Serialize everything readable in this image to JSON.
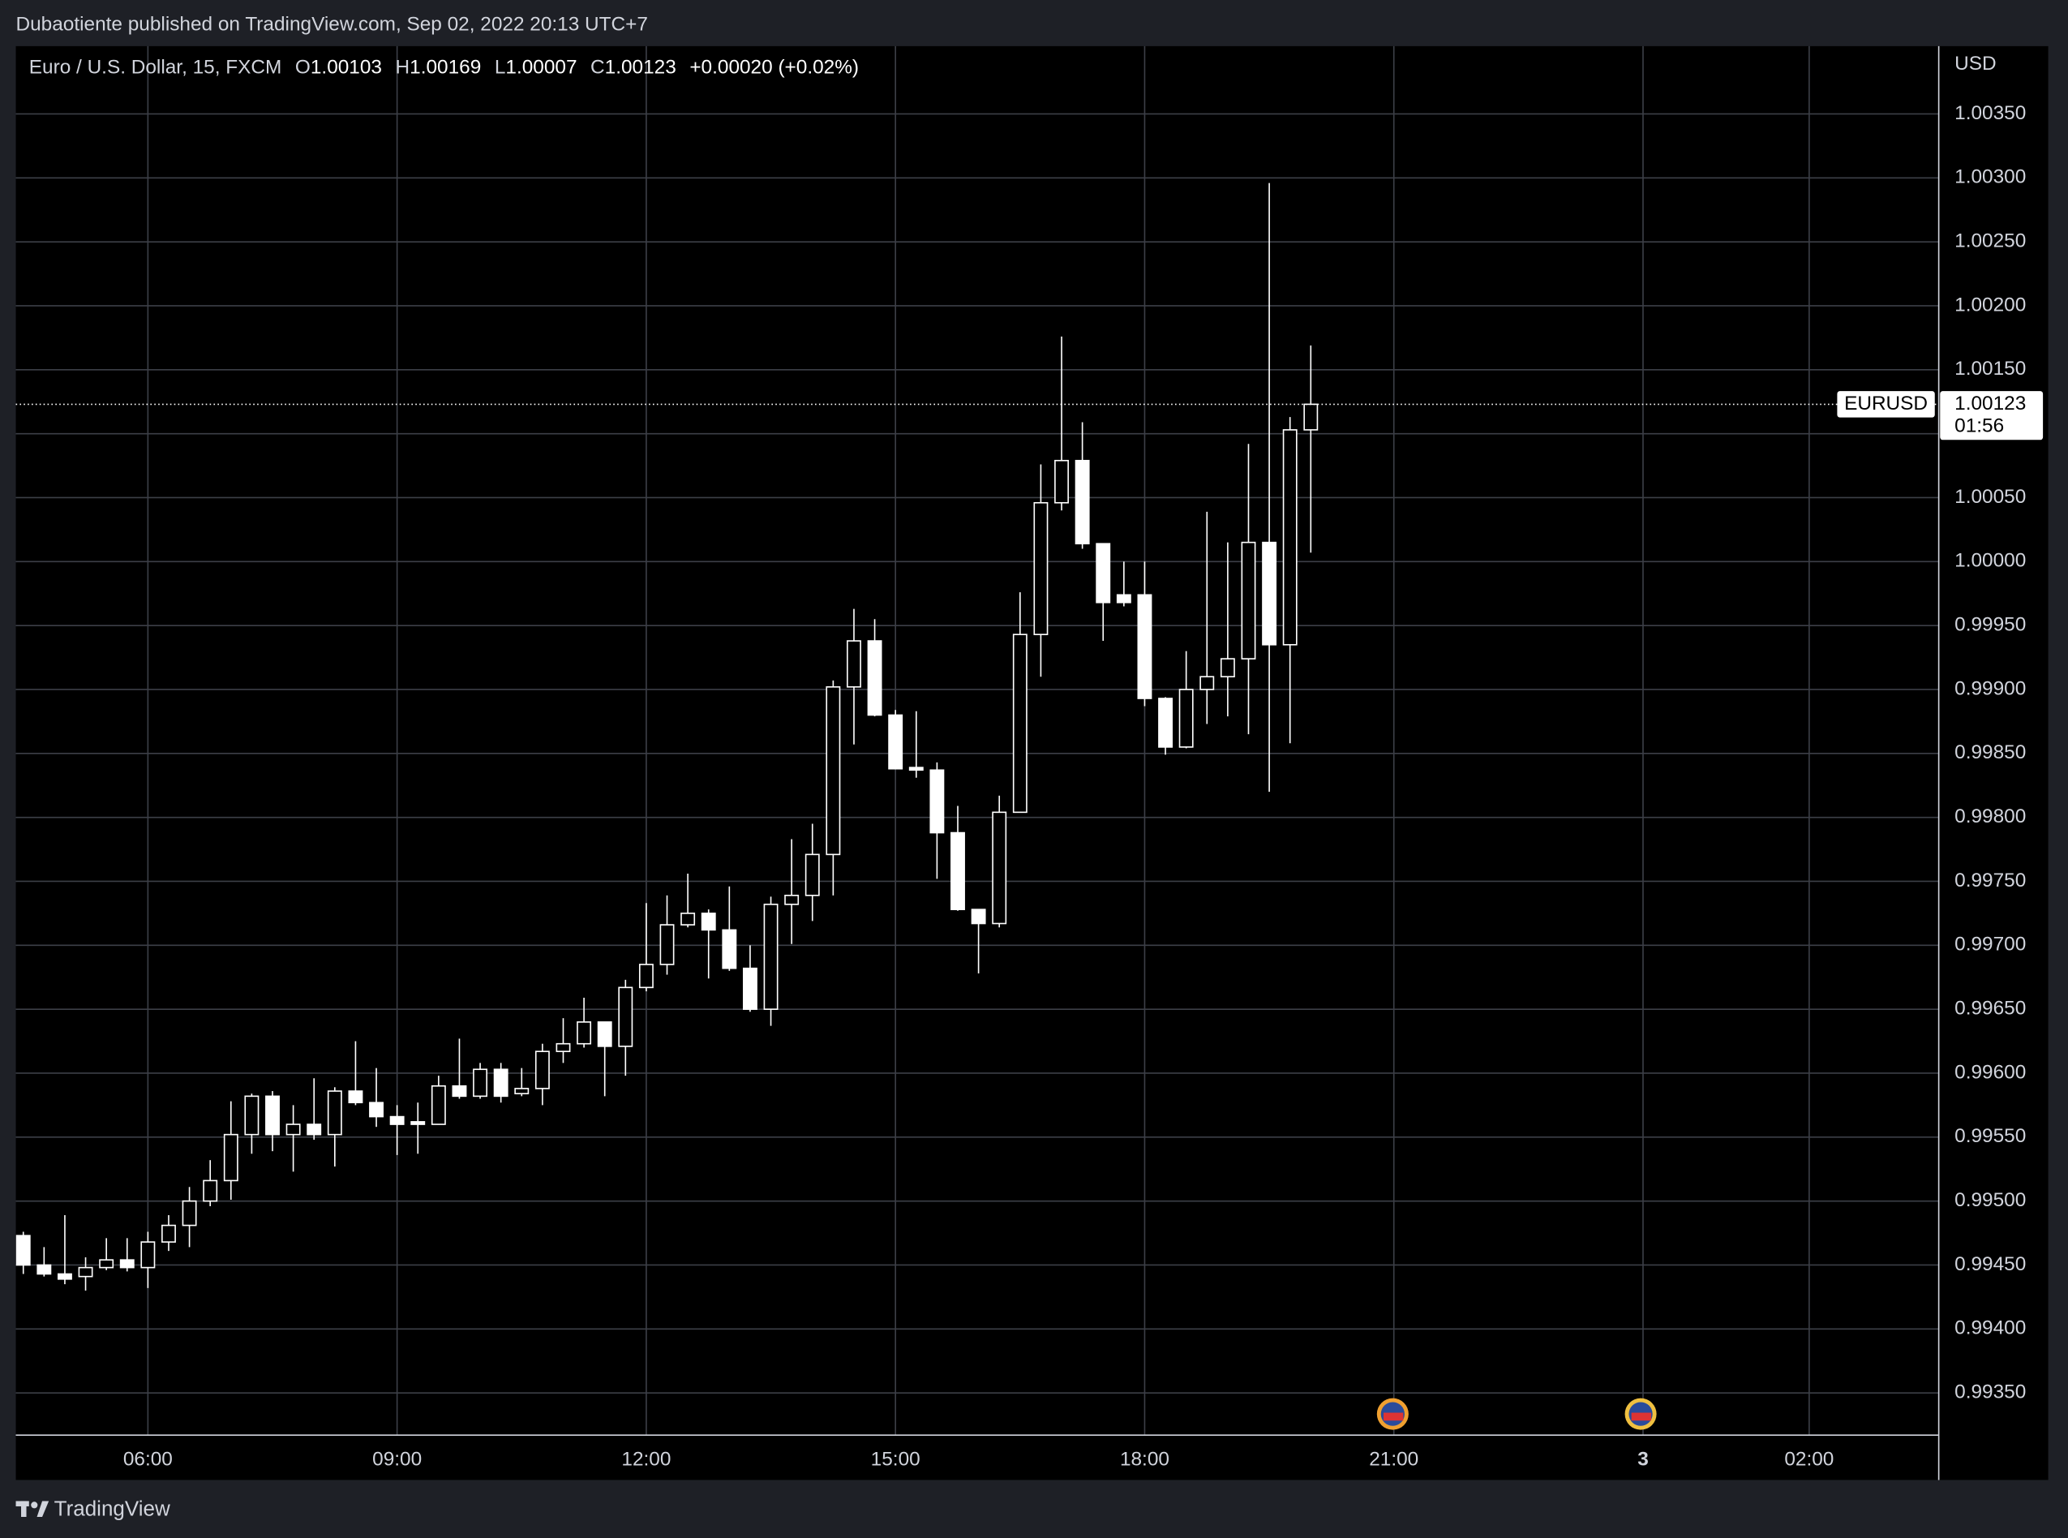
{
  "header": {
    "published": "Dubaotiente published on TradingView.com, Sep 02, 2022 20:13 UTC+7"
  },
  "footer": {
    "brand": "TradingView"
  },
  "chart_data": {
    "type": "candlestick",
    "symbol": "Euro / U.S. Dollar, 15, FXCM",
    "ohlc_legend": [
      {
        "label": "O",
        "value": "1.00103"
      },
      {
        "label": "H",
        "value": "1.00169"
      },
      {
        "label": "L",
        "value": "1.00007"
      },
      {
        "label": "C",
        "value": "1.00123"
      }
    ],
    "change": "+0.00020 (+0.02%)",
    "y_unit": "USD",
    "price_tag": {
      "symbol": "EURUSD",
      "price": "1.00123",
      "countdown": "01:56"
    },
    "color": "#ffffff",
    "up_fill": "#000000",
    "grid": true,
    "x": [
      4.5,
      4.75,
      5,
      5.25,
      5.5,
      5.75,
      6,
      6.25,
      6.5,
      6.75,
      7,
      7.25,
      7.5,
      7.75,
      8,
      8.25,
      8.5,
      8.75,
      9,
      9.25,
      9.5,
      9.75,
      10,
      10.25,
      10.5,
      10.75,
      11,
      11.25,
      11.5,
      11.75,
      12,
      12.25,
      12.5,
      12.75,
      13,
      13.25,
      13.5,
      13.75,
      14,
      14.25,
      14.5,
      14.75,
      15,
      15.25,
      15.5,
      15.75,
      16,
      16.25,
      16.5,
      16.75,
      17,
      17.25,
      17.5,
      17.75,
      18,
      18.25,
      18.5,
      18.75,
      19,
      19.25,
      19.5,
      19.75,
      20
    ],
    "open": [
      0.99473,
      0.9945,
      0.99443,
      0.99441,
      0.99448,
      0.99454,
      0.99448,
      0.99468,
      0.99481,
      0.995,
      0.99516,
      0.99552,
      0.99582,
      0.99552,
      0.9956,
      0.99552,
      0.99586,
      0.99577,
      0.99566,
      0.99562,
      0.9956,
      0.9959,
      0.99582,
      0.99603,
      0.99584,
      0.99588,
      0.99617,
      0.99623,
      0.9964,
      0.99621,
      0.99667,
      0.99685,
      0.99716,
      0.99725,
      0.99712,
      0.99682,
      0.9965,
      0.99732,
      0.99739,
      0.99771,
      0.99902,
      0.99938,
      0.9988,
      0.99839,
      0.99837,
      0.99788,
      0.99728,
      0.99717,
      0.99804,
      0.99943,
      1.00046,
      1.00079,
      1.00014,
      0.99974,
      0.99974,
      0.99893,
      0.99855,
      0.999,
      0.9991,
      0.99924,
      1.00015,
      0.99935,
      1.00103
    ],
    "high": [
      0.99476,
      0.99464,
      0.99489,
      0.99456,
      0.99471,
      0.99471,
      0.99476,
      0.99489,
      0.99511,
      0.99532,
      0.99578,
      0.99584,
      0.99586,
      0.99575,
      0.99596,
      0.99589,
      0.99625,
      0.99604,
      0.99575,
      0.99577,
      0.99598,
      0.99627,
      0.99608,
      0.99608,
      0.99604,
      0.99623,
      0.99643,
      0.99659,
      0.9964,
      0.99673,
      0.99733,
      0.99739,
      0.99756,
      0.99728,
      0.99746,
      0.997,
      0.99738,
      0.99783,
      0.99795,
      0.99907,
      0.99963,
      0.99955,
      0.99884,
      0.99883,
      0.99843,
      0.99809,
      0.99728,
      0.99817,
      0.99976,
      1.00076,
      1.00176,
      1.00109,
      1.00014,
      1.0,
      1.0,
      0.99894,
      0.9993,
      1.00039,
      1.00015,
      1.00092,
      1.00296,
      1.00113,
      1.00169
    ],
    "low": [
      0.99443,
      0.99441,
      0.99435,
      0.9943,
      0.99446,
      0.99445,
      0.99432,
      0.99461,
      0.99464,
      0.99496,
      0.99501,
      0.99537,
      0.99539,
      0.99523,
      0.99548,
      0.99527,
      0.99575,
      0.99558,
      0.99536,
      0.99537,
      0.9956,
      0.9958,
      0.9958,
      0.99577,
      0.99582,
      0.99575,
      0.99608,
      0.9962,
      0.99582,
      0.99598,
      0.99664,
      0.99677,
      0.99714,
      0.99674,
      0.9968,
      0.99648,
      0.99637,
      0.99701,
      0.99719,
      0.99739,
      0.99857,
      0.99879,
      0.99838,
      0.99831,
      0.99752,
      0.99727,
      0.99678,
      0.99714,
      0.99804,
      0.9991,
      1.0004,
      1.0001,
      0.99938,
      0.99965,
      0.99887,
      0.99849,
      0.99854,
      0.99873,
      0.99879,
      0.99865,
      0.9982,
      0.99858,
      1.00007
    ],
    "close": [
      0.9945,
      0.99443,
      0.99439,
      0.99448,
      0.99454,
      0.99448,
      0.99468,
      0.99481,
      0.995,
      0.99516,
      0.99552,
      0.99582,
      0.99552,
      0.9956,
      0.99552,
      0.99586,
      0.99577,
      0.99566,
      0.9956,
      0.9956,
      0.9959,
      0.99582,
      0.99603,
      0.99582,
      0.99588,
      0.99617,
      0.99623,
      0.9964,
      0.99621,
      0.99667,
      0.99685,
      0.99716,
      0.99725,
      0.99712,
      0.99682,
      0.9965,
      0.99732,
      0.99739,
      0.99771,
      0.99902,
      0.99938,
      0.9988,
      0.99838,
      0.99837,
      0.99788,
      0.99728,
      0.99717,
      0.99804,
      0.99943,
      1.00046,
      1.00079,
      1.00014,
      0.99968,
      0.99968,
      0.99893,
      0.99855,
      0.999,
      0.9991,
      0.99924,
      1.00015,
      0.99935,
      1.00103,
      1.00123
    ],
    "xlim": [
      4.41,
      27.56
    ],
    "xticks": [
      {
        "value": 6,
        "label": "06:00"
      },
      {
        "value": 9,
        "label": "09:00"
      },
      {
        "value": 12,
        "label": "12:00"
      },
      {
        "value": 15,
        "label": "15:00"
      },
      {
        "value": 18,
        "label": "18:00"
      },
      {
        "value": 21,
        "label": "21:00"
      },
      {
        "value": 24,
        "label": "3"
      },
      {
        "value": 26,
        "label": "02:00"
      }
    ],
    "ylim": [
      0.99317,
      1.00403
    ],
    "yticks": [
      {
        "value": 0.9935,
        "label": "0.99350"
      },
      {
        "value": 0.994,
        "label": "0.99400"
      },
      {
        "value": 0.9945,
        "label": "0.99450"
      },
      {
        "value": 0.995,
        "label": "0.99500"
      },
      {
        "value": 0.9955,
        "label": "0.99550"
      },
      {
        "value": 0.996,
        "label": "0.99600"
      },
      {
        "value": 0.9965,
        "label": "0.99650"
      },
      {
        "value": 0.997,
        "label": "0.99700"
      },
      {
        "value": 0.9975,
        "label": "0.99750"
      },
      {
        "value": 0.998,
        "label": "0.99800"
      },
      {
        "value": 0.9985,
        "label": "0.99850"
      },
      {
        "value": 0.999,
        "label": "0.99900"
      },
      {
        "value": 0.9995,
        "label": "0.99950"
      },
      {
        "value": 1.0,
        "label": "1.00000"
      },
      {
        "value": 1.0005,
        "label": "1.00050"
      },
      {
        "value": 1.001,
        "label": "1.00100"
      },
      {
        "value": 1.0015,
        "label": "1.00150"
      },
      {
        "value": 1.002,
        "label": "1.00200"
      },
      {
        "value": 1.0025,
        "label": "1.00250"
      },
      {
        "value": 1.003,
        "label": "1.00300"
      },
      {
        "value": 1.0035,
        "label": "1.00350"
      }
    ]
  }
}
